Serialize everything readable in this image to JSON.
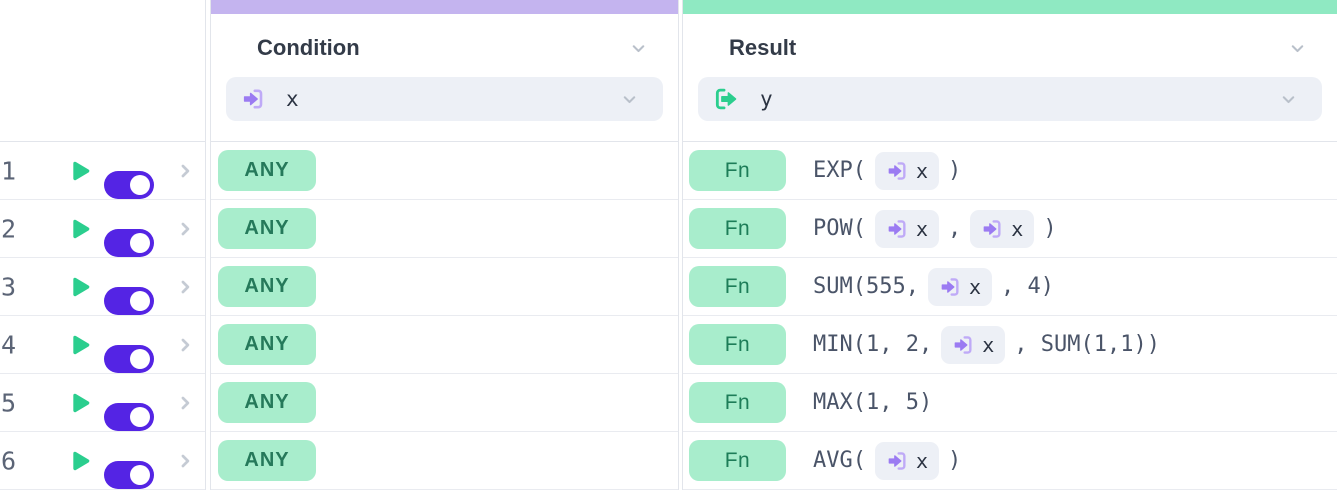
{
  "app_title": "decision-table-editor",
  "colors": {
    "condition_accent": "#c4b4ef",
    "result_accent": "#8fe9c2",
    "badge_bg": "#a8edcc",
    "badge_text": "#1d7d58",
    "toggle_on": "#5424e4",
    "play_green": "#2bce8e",
    "input_purple": "#9b7bf2",
    "chip_bg": "#edf0f6",
    "expression_text": "#4a5468"
  },
  "icons": {
    "condition_field": "sign-in-icon",
    "result_field": "sign-out-icon",
    "variable_chip": "sign-in-icon",
    "row_run": "play-icon",
    "row_expand": "chevron-right-icon",
    "header_collapse": "chevron-down-icon"
  },
  "columns": {
    "condition": {
      "title": "Condition",
      "field_label": "x",
      "accent": "#c4b4ef"
    },
    "result": {
      "title": "Result",
      "field_label": "y",
      "accent": "#8fe9c2"
    }
  },
  "rows": [
    {
      "num": "1",
      "enabled": true,
      "condition": "ANY",
      "result_badge": "Fn",
      "result_tokens": [
        [
          "text",
          "EXP("
        ],
        [
          "chip",
          "x"
        ],
        [
          "text",
          ")"
        ]
      ]
    },
    {
      "num": "2",
      "enabled": true,
      "condition": "ANY",
      "result_badge": "Fn",
      "result_tokens": [
        [
          "text",
          "POW("
        ],
        [
          "chip",
          "x"
        ],
        [
          "text",
          ","
        ],
        [
          "chip",
          "x"
        ],
        [
          "text",
          ")"
        ]
      ]
    },
    {
      "num": "3",
      "enabled": true,
      "condition": "ANY",
      "result_badge": "Fn",
      "result_tokens": [
        [
          "text",
          "SUM(555,"
        ],
        [
          "chip",
          "x"
        ],
        [
          "text",
          ", 4)"
        ]
      ]
    },
    {
      "num": "4",
      "enabled": true,
      "condition": "ANY",
      "result_badge": "Fn",
      "result_tokens": [
        [
          "text",
          "MIN(1, 2,"
        ],
        [
          "chip",
          "x"
        ],
        [
          "text",
          ", SUM(1,1))"
        ]
      ]
    },
    {
      "num": "5",
      "enabled": true,
      "condition": "ANY",
      "result_badge": "Fn",
      "result_tokens": [
        [
          "text",
          "MAX(1, 5)"
        ]
      ]
    },
    {
      "num": "6",
      "enabled": true,
      "condition": "ANY",
      "result_badge": "Fn",
      "result_tokens": [
        [
          "text",
          "AVG("
        ],
        [
          "chip",
          "x"
        ],
        [
          "text",
          ")"
        ]
      ]
    }
  ]
}
